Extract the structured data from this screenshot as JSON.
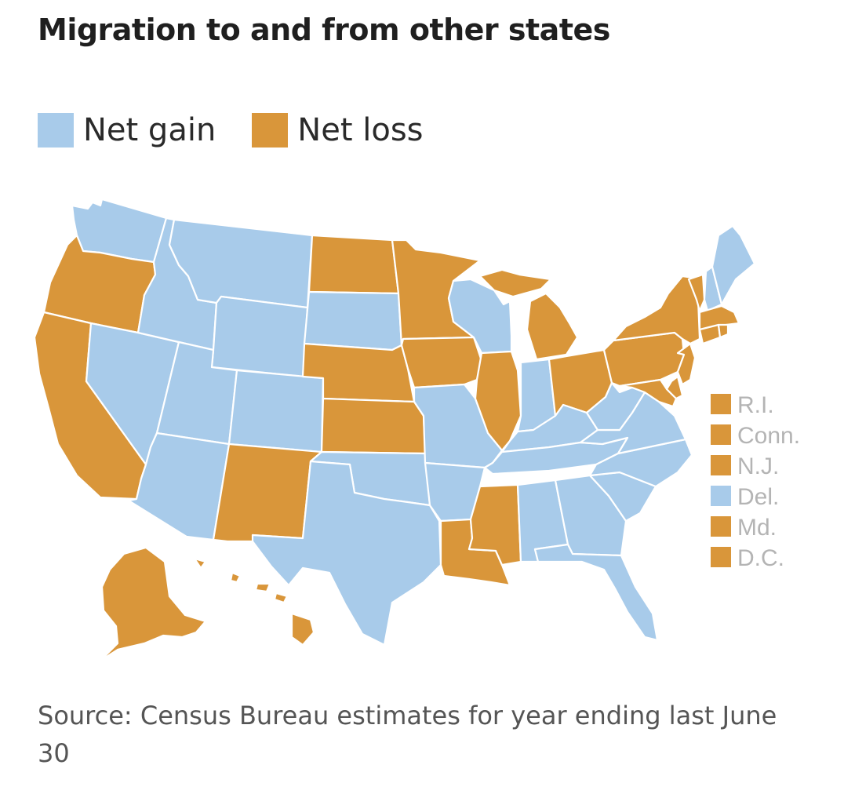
{
  "title": "Migration to and from other states",
  "legend": [
    {
      "label": "Net gain",
      "color": "#a8cbea"
    },
    {
      "label": "Net loss",
      "color": "#d9963a"
    }
  ],
  "small_states": [
    {
      "label": "R.I.",
      "status": "loss"
    },
    {
      "label": "Conn.",
      "status": "loss"
    },
    {
      "label": "N.J.",
      "status": "loss"
    },
    {
      "label": "Del.",
      "status": "gain"
    },
    {
      "label": "Md.",
      "status": "loss"
    },
    {
      "label": "D.C.",
      "status": "loss"
    }
  ],
  "states": {
    "WA": "gain",
    "OR": "loss",
    "CA": "loss",
    "NV": "gain",
    "ID": "gain",
    "MT": "gain",
    "WY": "gain",
    "UT": "gain",
    "AZ": "gain",
    "CO": "gain",
    "NM": "loss",
    "ND": "loss",
    "SD": "gain",
    "NE": "loss",
    "KS": "loss",
    "OK": "gain",
    "TX": "gain",
    "MN": "loss",
    "IA": "loss",
    "MO": "gain",
    "AR": "gain",
    "LA": "loss",
    "WI": "gain",
    "IL": "loss",
    "MI": "loss",
    "IN": "gain",
    "OH": "loss",
    "KY": "gain",
    "TN": "gain",
    "MS": "loss",
    "AL": "gain",
    "GA": "gain",
    "FL": "gain",
    "SC": "gain",
    "NC": "gain",
    "VA": "gain",
    "WV": "gain",
    "PA": "loss",
    "NY": "loss",
    "VT": "loss",
    "NH": "gain",
    "ME": "gain",
    "MA": "loss",
    "AK": "loss",
    "HI": "loss"
  },
  "source": "Source: Census Bureau estimates for year ending last June 30"
}
